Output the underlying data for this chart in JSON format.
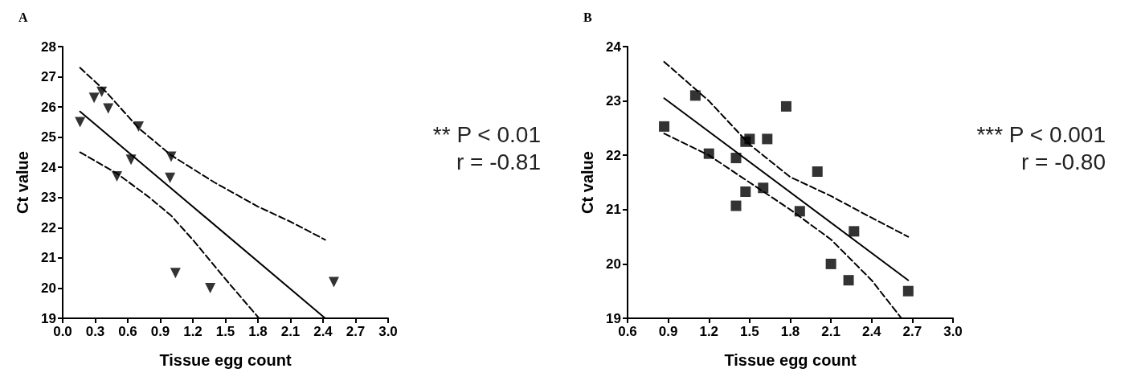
{
  "chart_data": [
    {
      "type": "scatter",
      "title": "A",
      "xlabel": "Tissue egg count",
      "ylabel": "Ct value",
      "xlim": [
        0,
        3
      ],
      "ylim": [
        19,
        28
      ],
      "xticks": [
        {
          "value": 0,
          "label": "0.0"
        },
        {
          "value": 0.3,
          "label": "0.3"
        },
        {
          "value": 0.6,
          "label": "0.6"
        },
        {
          "value": 0.9,
          "label": "0.9"
        },
        {
          "value": 1.2,
          "label": "1.2"
        },
        {
          "value": 1.5,
          "label": "1.5"
        },
        {
          "value": 1.8,
          "label": "1.8"
        },
        {
          "value": 2.1,
          "label": "2.1"
        },
        {
          "value": 2.4,
          "label": "2.4"
        },
        {
          "value": 2.7,
          "label": "2.7"
        },
        {
          "value": 3,
          "label": "3.0"
        }
      ],
      "yticks": [
        19,
        20,
        21,
        22,
        23,
        24,
        25,
        26,
        27,
        28
      ],
      "grid": false,
      "annotations": [
        "** P < 0.01",
        "r = -0.81"
      ],
      "series": [
        {
          "marker": "triangle",
          "color": "#000000",
          "x": [
            0.16,
            0.29,
            0.36,
            0.42,
            0.5,
            0.63,
            0.7,
            1.0,
            0.99,
            1.04,
            1.36,
            2.5
          ],
          "values": [
            25.5,
            26.3,
            26.5,
            25.95,
            23.7,
            24.25,
            25.35,
            24.35,
            23.65,
            20.5,
            20.0,
            20.2
          ]
        },
        {
          "type": "line",
          "line_style": "solid",
          "marker": "none",
          "color": "#000000",
          "x": [
            0.16,
            2.42
          ],
          "values": [
            25.85,
            19.0
          ]
        },
        {
          "type": "line",
          "line_style": "dashed",
          "marker": "none",
          "color": "#000000",
          "x": [
            0.16,
            0.4,
            0.7,
            1.0,
            1.4,
            1.8,
            2.1,
            2.42
          ],
          "values": [
            27.3,
            26.5,
            25.3,
            24.4,
            23.5,
            22.7,
            22.2,
            21.6
          ]
        },
        {
          "type": "line",
          "line_style": "dashed",
          "marker": "none",
          "color": "#000000",
          "x": [
            0.16,
            0.5,
            0.8,
            1.0,
            1.2,
            1.5,
            1.81
          ],
          "values": [
            24.5,
            23.8,
            23.0,
            22.4,
            21.6,
            20.3,
            19.0
          ]
        }
      ]
    },
    {
      "type": "scatter",
      "title": "B",
      "xlabel": "Tissue egg count",
      "ylabel": "Ct value",
      "xlim": [
        0.6,
        3
      ],
      "ylim": [
        19,
        24
      ],
      "xticks": [
        {
          "value": 0.6,
          "label": "0.6"
        },
        {
          "value": 0.9,
          "label": "0.9"
        },
        {
          "value": 1.2,
          "label": "1.2"
        },
        {
          "value": 1.5,
          "label": "1.5"
        },
        {
          "value": 1.8,
          "label": "1.8"
        },
        {
          "value": 2.1,
          "label": "2.1"
        },
        {
          "value": 2.4,
          "label": "2.4"
        },
        {
          "value": 2.7,
          "label": "2.7"
        },
        {
          "value": 3,
          "label": "3.0"
        }
      ],
      "yticks": [
        19,
        20,
        21,
        22,
        23,
        24
      ],
      "grid": false,
      "annotations": [
        "*** P < 0.001",
        "r = -0.80"
      ],
      "series": [
        {
          "marker": "square",
          "color": "#000000",
          "x": [
            0.87,
            1.1,
            1.2,
            1.4,
            1.4,
            1.47,
            1.5,
            1.47,
            1.6,
            1.63,
            1.77,
            1.87,
            2.0,
            2.1,
            2.23,
            2.27,
            2.67
          ],
          "values": [
            22.53,
            23.1,
            22.03,
            21.95,
            21.07,
            22.25,
            22.3,
            21.33,
            21.4,
            22.3,
            22.9,
            20.97,
            21.7,
            20.0,
            19.7,
            20.6,
            19.5
          ]
        },
        {
          "type": "line",
          "line_style": "solid",
          "marker": "none",
          "color": "#000000",
          "x": [
            0.87,
            2.67
          ],
          "values": [
            23.05,
            19.7
          ]
        },
        {
          "type": "line",
          "line_style": "dashed",
          "marker": "none",
          "color": "#000000",
          "x": [
            0.87,
            1.2,
            1.5,
            1.8,
            2.1,
            2.4,
            2.67
          ],
          "values": [
            23.72,
            23.0,
            22.2,
            21.6,
            21.25,
            20.85,
            20.5
          ]
        },
        {
          "type": "line",
          "line_style": "dashed",
          "marker": "none",
          "color": "#000000",
          "x": [
            0.87,
            1.2,
            1.5,
            1.8,
            2.1,
            2.4,
            2.62
          ],
          "values": [
            22.4,
            22.0,
            21.5,
            21.0,
            20.45,
            19.7,
            19.0
          ]
        }
      ]
    }
  ]
}
